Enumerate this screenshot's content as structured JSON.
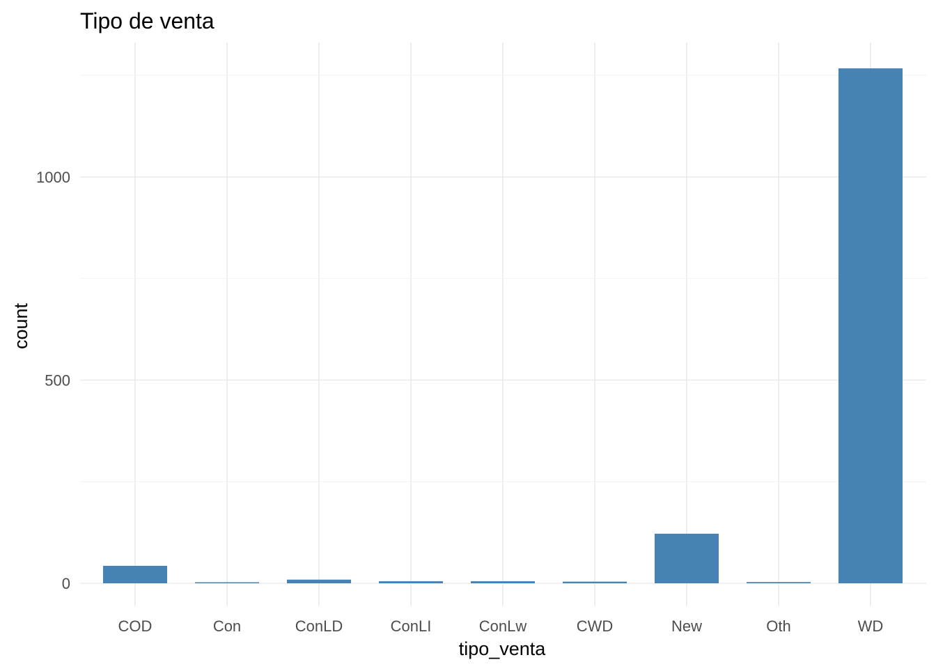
{
  "chart_data": {
    "type": "bar",
    "title": "Tipo de venta",
    "xlabel": "tipo_venta",
    "ylabel": "count",
    "categories": [
      "COD",
      "Con",
      "ConLD",
      "ConLI",
      "ConLw",
      "CWD",
      "New",
      "Oth",
      "WD"
    ],
    "values": [
      43,
      2,
      9,
      5,
      5,
      4,
      122,
      3,
      1267
    ],
    "ylim": [
      0,
      1267
    ],
    "yticks": [
      0,
      500,
      1000
    ],
    "ytick_labels": [
      "0",
      "500",
      "1000"
    ],
    "grid": true,
    "bar_color": "#4682b4",
    "legend": "none"
  }
}
